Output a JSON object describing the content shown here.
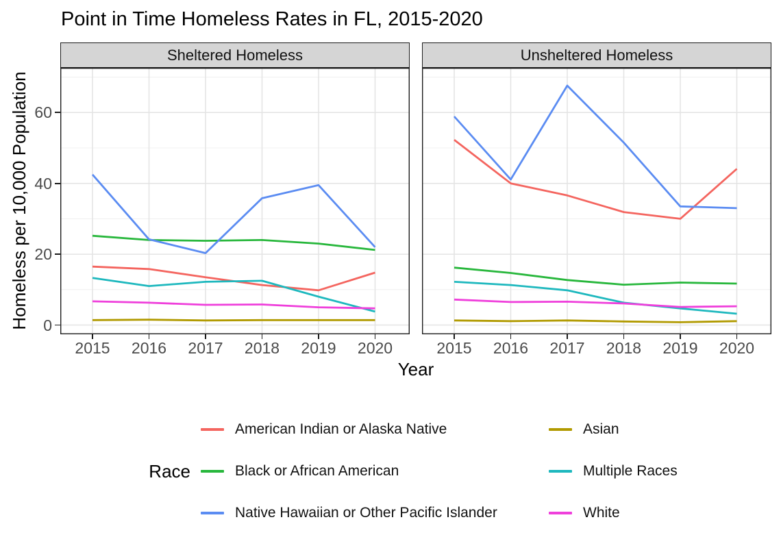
{
  "chart_data": {
    "type": "line",
    "title": "Point in Time Homeless Rates in FL, 2015-2020",
    "xlabel": "Year",
    "ylabel": "Homeless per 10,000 Population",
    "legend_title": "Race",
    "legend_position": "bottom",
    "grid": true,
    "x": [
      2015,
      2016,
      2017,
      2018,
      2019,
      2020
    ],
    "ylim": [
      0,
      70
    ],
    "yticks": [
      0,
      20,
      40,
      60
    ],
    "yminor": [
      10,
      30,
      50,
      70
    ],
    "facets": [
      {
        "label": "Sheltered Homeless",
        "series": [
          {
            "name": "American Indian or Alaska Native",
            "color": "#F4655F",
            "values": [
              16.5,
              15.8,
              13.5,
              11.3,
              9.8,
              14.8
            ]
          },
          {
            "name": "Asian",
            "color": "#B19A00",
            "values": [
              1.4,
              1.5,
              1.3,
              1.4,
              1.4,
              1.4
            ]
          },
          {
            "name": "Black or African American",
            "color": "#28B73C",
            "values": [
              25.2,
              24.0,
              23.8,
              24.0,
              23.0,
              21.2
            ]
          },
          {
            "name": "Multiple Races",
            "color": "#1EB8BE",
            "values": [
              13.3,
              11.0,
              12.2,
              12.5,
              8.0,
              3.8
            ]
          },
          {
            "name": "Native Hawaiian or Other Pacific Islander",
            "color": "#5B8CF2",
            "values": [
              42.5,
              24.2,
              20.3,
              35.8,
              39.5,
              22.0
            ]
          },
          {
            "name": "White",
            "color": "#EF3FDB",
            "values": [
              6.7,
              6.3,
              5.7,
              5.8,
              5.0,
              4.7
            ]
          }
        ]
      },
      {
        "label": "Unsheltered Homeless",
        "series": [
          {
            "name": "American Indian or Alaska Native",
            "color": "#F4655F",
            "values": [
              52.3,
              40.0,
              36.6,
              31.9,
              30.0,
              44.1
            ]
          },
          {
            "name": "Asian",
            "color": "#B19A00",
            "values": [
              1.3,
              1.1,
              1.3,
              1.0,
              0.8,
              1.1
            ]
          },
          {
            "name": "Black or African American",
            "color": "#28B73C",
            "values": [
              16.2,
              14.7,
              12.7,
              11.4,
              12.0,
              11.7
            ]
          },
          {
            "name": "Multiple Races",
            "color": "#1EB8BE",
            "values": [
              12.2,
              11.3,
              9.8,
              6.3,
              4.7,
              3.2
            ]
          },
          {
            "name": "Native Hawaiian or Other Pacific Islander",
            "color": "#5B8CF2",
            "values": [
              58.9,
              41.1,
              67.6,
              51.5,
              33.5,
              33.0
            ]
          },
          {
            "name": "White",
            "color": "#EF3FDB",
            "values": [
              7.2,
              6.5,
              6.6,
              6.1,
              5.1,
              5.3
            ]
          }
        ]
      }
    ]
  },
  "legend": {
    "title": "Race",
    "items": [
      {
        "label": "American Indian or Alaska Native",
        "color": "#F4655F"
      },
      {
        "label": "Asian",
        "color": "#B19A00"
      },
      {
        "label": "Black or African American",
        "color": "#28B73C"
      },
      {
        "label": "Multiple Races",
        "color": "#1EB8BE"
      },
      {
        "label": "Native Hawaiian or Other Pacific Islander",
        "color": "#5B8CF2"
      },
      {
        "label": "White",
        "color": "#EF3FDB"
      }
    ]
  }
}
